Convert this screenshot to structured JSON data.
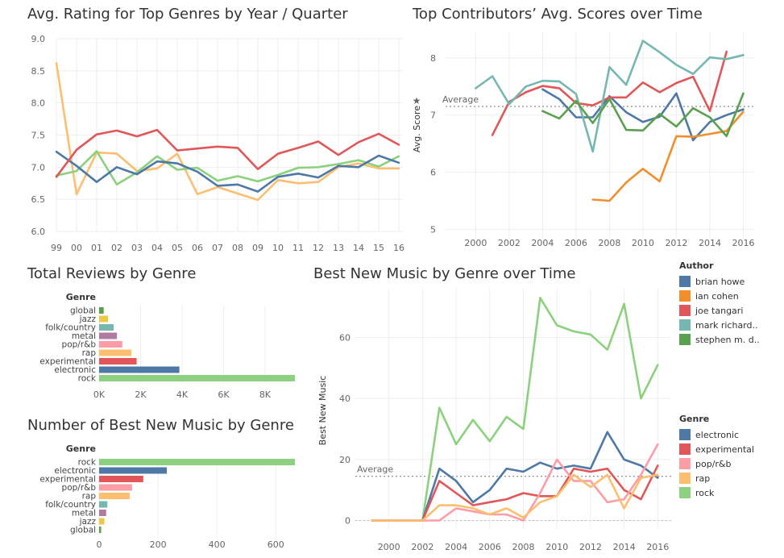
{
  "colors": {
    "brian howe": "#4e79a7",
    "ian cohen": "#f28e2b",
    "joe tangari": "#e15759",
    "mark richard..": "#76b7b2",
    "stephen m. d..": "#59a14f",
    "electronic": "#4e79a7",
    "experimental": "#e15759",
    "pop/r&b": "#ff9da7",
    "rap": "#fdbf6f",
    "rock": "#8cd17d",
    "global": "#59a14f",
    "jazz": "#edc948",
    "folk/country": "#76b7b2",
    "metal": "#b07aa1",
    "grid": "#eeeeee",
    "avg_line": "#999999"
  },
  "chart_data": [
    {
      "id": "c1",
      "type": "line",
      "title": "Avg. Rating for Top Genres by Year / Quarter",
      "categories": [
        "99",
        "00",
        "01",
        "02",
        "03",
        "04",
        "05",
        "06",
        "07",
        "08",
        "09",
        "10",
        "11",
        "12",
        "13",
        "14",
        "15",
        "16"
      ],
      "ylim": [
        6.0,
        9.0
      ],
      "yticks": [
        "9.0",
        "8.5",
        "8.0",
        "7.5",
        "7.0",
        "6.5",
        "6.0"
      ],
      "series": [
        {
          "color_key": "rap",
          "values": [
            8.62,
            6.58,
            7.23,
            7.21,
            6.94,
            6.98,
            7.21,
            6.58,
            6.69,
            6.59,
            6.49,
            6.8,
            6.75,
            6.77,
            7.0,
            7.06,
            6.98,
            6.98
          ]
        },
        {
          "color_key": "rock",
          "values": [
            6.87,
            6.94,
            7.25,
            6.73,
            6.92,
            7.17,
            6.96,
            6.99,
            6.79,
            6.86,
            6.78,
            6.88,
            6.99,
            7.0,
            7.05,
            7.11,
            7.01,
            7.17
          ]
        },
        {
          "color_key": "electronic",
          "values": [
            7.24,
            7.02,
            6.77,
            7.0,
            6.89,
            7.09,
            7.06,
            6.93,
            6.71,
            6.73,
            6.62,
            6.85,
            6.9,
            6.84,
            7.02,
            7.0,
            7.18,
            7.07
          ]
        },
        {
          "color_key": "experimental",
          "values": [
            6.85,
            7.27,
            7.51,
            7.57,
            7.48,
            7.58,
            7.26,
            7.29,
            7.32,
            7.3,
            6.97,
            7.21,
            7.3,
            7.4,
            7.19,
            7.39,
            7.52,
            7.35
          ]
        }
      ]
    },
    {
      "id": "c2",
      "type": "line",
      "title": "Top Contributors’ Avg. Scores over Time",
      "ylabel": "Avg. Score",
      "xlim": [
        2000,
        2016
      ],
      "ylim": [
        4.85,
        8.45
      ],
      "xticks": [
        "2000",
        "2002",
        "2004",
        "2006",
        "2008",
        "2010",
        "2012",
        "2014",
        "2016"
      ],
      "yticks": [
        "8",
        "7",
        "6",
        "5"
      ],
      "average": 7.15,
      "average_label": "Average",
      "series": [
        {
          "name": "brian howe",
          "x": [
            2004,
            2005,
            2006,
            2007,
            2008,
            2009,
            2010,
            2011,
            2012,
            2013,
            2014,
            2015,
            2016
          ],
          "y": [
            7.45,
            7.28,
            6.96,
            6.96,
            7.33,
            7.05,
            6.88,
            6.97,
            7.38,
            6.56,
            6.88,
            7.0,
            7.1
          ]
        },
        {
          "name": "ian cohen",
          "x": [
            2007,
            2008,
            2009,
            2010,
            2011,
            2012,
            2013,
            2014,
            2015,
            2016
          ],
          "y": [
            5.52,
            5.5,
            5.82,
            6.06,
            5.84,
            6.63,
            6.62,
            6.67,
            6.72,
            7.06
          ]
        },
        {
          "name": "joe tangari",
          "x": [
            2001,
            2002,
            2003,
            2004,
            2005,
            2006,
            2007,
            2008,
            2009,
            2010,
            2011,
            2012,
            2013,
            2014,
            2015
          ],
          "y": [
            6.65,
            7.23,
            7.4,
            7.51,
            7.47,
            7.21,
            7.17,
            7.31,
            7.31,
            7.57,
            7.4,
            7.56,
            7.67,
            7.07,
            8.11
          ]
        },
        {
          "name": "mark richard..",
          "x": [
            2000,
            2001,
            2002,
            2003,
            2004,
            2005,
            2006,
            2007,
            2008,
            2009,
            2010,
            2011,
            2012,
            2013,
            2014,
            2015,
            2016
          ],
          "y": [
            7.47,
            7.68,
            7.19,
            7.5,
            7.6,
            7.59,
            7.37,
            6.36,
            7.84,
            7.53,
            8.3,
            8.1,
            7.88,
            7.72,
            8.01,
            7.98,
            8.05
          ]
        },
        {
          "name": "stephen m. d..",
          "x": [
            2004,
            2005,
            2006,
            2007,
            2008,
            2009,
            2010,
            2011,
            2012,
            2013,
            2014,
            2015,
            2016
          ],
          "y": [
            7.07,
            6.94,
            7.25,
            6.86,
            7.28,
            6.74,
            6.73,
            7.02,
            6.8,
            7.12,
            6.96,
            6.63,
            7.38
          ]
        }
      ]
    },
    {
      "id": "c3",
      "type": "bar",
      "title": "Total Reviews by Genre",
      "legend_title": "Genre",
      "categories": [
        "global",
        "jazz",
        "folk/country",
        "metal",
        "pop/r&b",
        "rap",
        "experimental",
        "electronic",
        "rock"
      ],
      "values": [
        220,
        430,
        700,
        860,
        1120,
        1560,
        1810,
        3870,
        9440
      ],
      "xlim": [
        0,
        9440
      ],
      "xticks": [
        "0K",
        "2K",
        "4K",
        "6K",
        "8K"
      ]
    },
    {
      "id": "c4",
      "type": "bar",
      "title": "Number of Best New Music by Genre",
      "legend_title": "Genre",
      "categories": [
        "rock",
        "electronic",
        "experimental",
        "pop/r&b",
        "rap",
        "folk/country",
        "metal",
        "jazz",
        "global"
      ],
      "values": [
        665,
        230,
        150,
        112,
        104,
        28,
        24,
        18,
        7
      ],
      "xlim": [
        0,
        665
      ],
      "xticks": [
        "0",
        "200",
        "400",
        "600"
      ]
    },
    {
      "id": "c5",
      "type": "line",
      "title": "Best New Music by Genre over Time",
      "ylabel": "Best New Music",
      "xlim": [
        1998,
        2016.8
      ],
      "ylim": [
        -2.5,
        76
      ],
      "xticks": [
        "2000",
        "2002",
        "2004",
        "2006",
        "2008",
        "2010",
        "2012",
        "2014",
        "2016"
      ],
      "yticks": [
        "60",
        "40",
        "20",
        "0"
      ],
      "average": 14.5,
      "average_label": "Average",
      "x": [
        1999,
        2000,
        2001,
        2002,
        2003,
        2004,
        2005,
        2006,
        2007,
        2008,
        2009,
        2010,
        2011,
        2012,
        2013,
        2014,
        2015,
        2016
      ],
      "series": [
        {
          "name": "rock",
          "values": [
            0,
            0,
            0,
            0,
            37,
            25,
            33,
            26,
            34,
            30,
            73,
            64,
            62,
            61,
            56,
            71,
            40,
            51
          ]
        },
        {
          "name": "electronic",
          "values": [
            0,
            0,
            0,
            0,
            17,
            13,
            6,
            10,
            17,
            16,
            19,
            17,
            18,
            17,
            29,
            20,
            18,
            14
          ]
        },
        {
          "name": "experimental",
          "values": [
            0,
            0,
            0,
            0,
            13,
            9,
            5,
            6,
            7,
            9,
            8,
            8,
            17,
            16,
            17,
            10,
            7,
            18
          ]
        },
        {
          "name": "pop/r&b",
          "values": [
            0,
            0,
            0,
            0,
            0,
            4,
            3,
            2,
            2,
            0,
            9,
            20,
            13,
            13,
            6,
            7,
            15,
            25
          ]
        },
        {
          "name": "rap",
          "values": [
            0,
            0,
            0,
            0,
            5,
            5,
            4,
            2,
            4,
            1,
            6,
            8,
            15,
            11,
            15,
            4,
            14,
            15
          ]
        }
      ]
    }
  ],
  "legends": {
    "author": {
      "title": "Author",
      "items": [
        "brian howe",
        "ian cohen",
        "joe tangari",
        "mark richard..",
        "stephen m. d.."
      ]
    },
    "genre": {
      "title": "Genre",
      "items": [
        "electronic",
        "experimental",
        "pop/r&b",
        "rap",
        "rock"
      ]
    }
  }
}
